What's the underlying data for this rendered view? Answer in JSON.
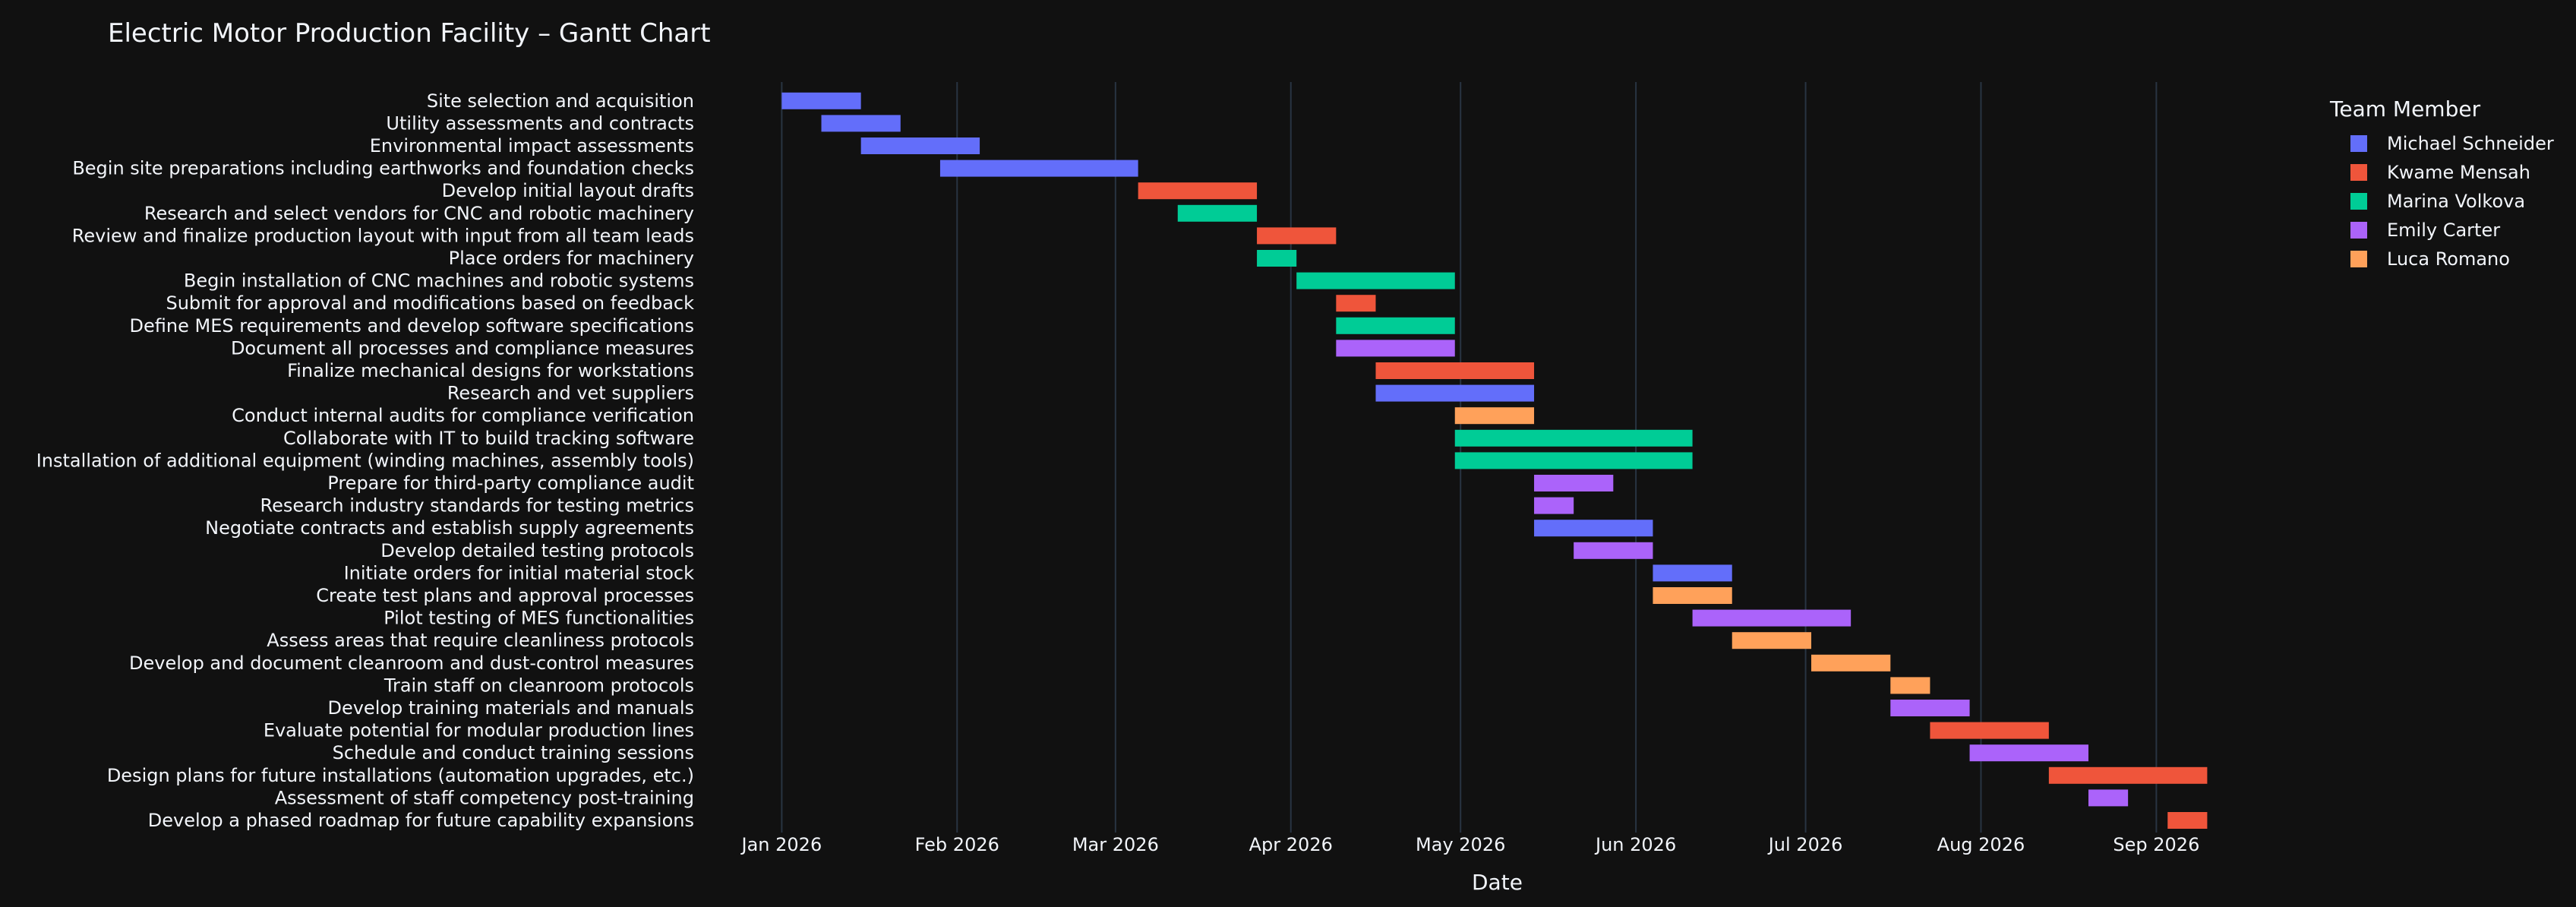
{
  "chart_data": {
    "type": "gantt",
    "title": "Electric Motor Production Facility – Gantt Chart",
    "xlabel": "Date",
    "ylabel": "",
    "x_ticks": [
      "Jan 2026",
      "Feb 2026",
      "Mar 2026",
      "Apr 2026",
      "May 2026",
      "Jun 2026",
      "Jul 2026",
      "Aug 2026",
      "Sep 2026"
    ],
    "x_range": [
      "2025-12-20",
      "2026-09-18"
    ],
    "grid": true,
    "legend_title": "Team Member",
    "legend_position": "top-right",
    "members": [
      {
        "name": "Michael Schneider",
        "color": "#636efa"
      },
      {
        "name": "Kwame Mensah",
        "color": "#ef553b"
      },
      {
        "name": "Marina Volkova",
        "color": "#00cc96"
      },
      {
        "name": "Emily Carter",
        "color": "#ab63fa"
      },
      {
        "name": "Luca Romano",
        "color": "#ffa15a"
      }
    ],
    "tasks": [
      {
        "task": "Site selection and acquisition",
        "start": "2026-01-01",
        "end": "2026-01-15",
        "member": "Michael Schneider"
      },
      {
        "task": "Utility assessments and contracts",
        "start": "2026-01-08",
        "end": "2026-01-22",
        "member": "Michael Schneider"
      },
      {
        "task": "Environmental impact assessments",
        "start": "2026-01-15",
        "end": "2026-02-05",
        "member": "Michael Schneider"
      },
      {
        "task": "Begin site preparations including earthworks and foundation checks",
        "start": "2026-01-29",
        "end": "2026-03-05",
        "member": "Michael Schneider"
      },
      {
        "task": "Develop initial layout drafts",
        "start": "2026-03-05",
        "end": "2026-03-26",
        "member": "Kwame Mensah"
      },
      {
        "task": "Research and select vendors for CNC and robotic machinery",
        "start": "2026-03-12",
        "end": "2026-03-26",
        "member": "Marina Volkova"
      },
      {
        "task": "Review and finalize production layout with input from all team leads",
        "start": "2026-03-26",
        "end": "2026-04-09",
        "member": "Kwame Mensah"
      },
      {
        "task": "Place orders for machinery",
        "start": "2026-03-26",
        "end": "2026-04-02",
        "member": "Marina Volkova"
      },
      {
        "task": "Begin installation of CNC machines and robotic systems",
        "start": "2026-04-02",
        "end": "2026-04-30",
        "member": "Marina Volkova"
      },
      {
        "task": "Submit for approval and modifications based on feedback",
        "start": "2026-04-09",
        "end": "2026-04-16",
        "member": "Kwame Mensah"
      },
      {
        "task": "Define MES requirements and develop software specifications",
        "start": "2026-04-09",
        "end": "2026-04-30",
        "member": "Marina Volkova"
      },
      {
        "task": "Document all processes and compliance measures",
        "start": "2026-04-09",
        "end": "2026-04-30",
        "member": "Emily Carter"
      },
      {
        "task": "Finalize mechanical designs for workstations",
        "start": "2026-04-16",
        "end": "2026-05-14",
        "member": "Kwame Mensah"
      },
      {
        "task": "Research and vet suppliers",
        "start": "2026-04-16",
        "end": "2026-05-14",
        "member": "Michael Schneider"
      },
      {
        "task": "Conduct internal audits for compliance verification",
        "start": "2026-04-30",
        "end": "2026-05-14",
        "member": "Luca Romano"
      },
      {
        "task": "Collaborate with IT to build tracking software",
        "start": "2026-04-30",
        "end": "2026-06-11",
        "member": "Marina Volkova"
      },
      {
        "task": "Installation of additional equipment (winding machines, assembly tools)",
        "start": "2026-04-30",
        "end": "2026-06-11",
        "member": "Marina Volkova"
      },
      {
        "task": "Prepare for third-party compliance audit",
        "start": "2026-05-14",
        "end": "2026-05-28",
        "member": "Emily Carter"
      },
      {
        "task": "Research industry standards for testing metrics",
        "start": "2026-05-14",
        "end": "2026-05-21",
        "member": "Emily Carter"
      },
      {
        "task": "Negotiate contracts and establish supply agreements",
        "start": "2026-05-14",
        "end": "2026-06-04",
        "member": "Michael Schneider"
      },
      {
        "task": "Develop detailed testing protocols",
        "start": "2026-05-21",
        "end": "2026-06-04",
        "member": "Emily Carter"
      },
      {
        "task": "Initiate orders for initial material stock",
        "start": "2026-06-04",
        "end": "2026-06-18",
        "member": "Michael Schneider"
      },
      {
        "task": "Create test plans and approval processes",
        "start": "2026-06-04",
        "end": "2026-06-18",
        "member": "Luca Romano"
      },
      {
        "task": "Pilot testing of MES functionalities",
        "start": "2026-06-11",
        "end": "2026-07-09",
        "member": "Emily Carter"
      },
      {
        "task": "Assess areas that require cleanliness protocols",
        "start": "2026-06-18",
        "end": "2026-07-02",
        "member": "Luca Romano"
      },
      {
        "task": "Develop and document cleanroom and dust-control measures",
        "start": "2026-07-02",
        "end": "2026-07-16",
        "member": "Luca Romano"
      },
      {
        "task": "Train staff on cleanroom protocols",
        "start": "2026-07-16",
        "end": "2026-07-23",
        "member": "Luca Romano"
      },
      {
        "task": "Develop training materials and manuals",
        "start": "2026-07-16",
        "end": "2026-07-30",
        "member": "Emily Carter"
      },
      {
        "task": "Evaluate potential for modular production lines",
        "start": "2026-07-23",
        "end": "2026-08-13",
        "member": "Kwame Mensah"
      },
      {
        "task": "Schedule and conduct training sessions",
        "start": "2026-07-30",
        "end": "2026-08-20",
        "member": "Emily Carter"
      },
      {
        "task": "Design plans for future installations (automation upgrades, etc.)",
        "start": "2026-08-13",
        "end": "2026-09-10",
        "member": "Kwame Mensah"
      },
      {
        "task": "Assessment of staff competency post-training",
        "start": "2026-08-20",
        "end": "2026-08-27",
        "member": "Emily Carter"
      },
      {
        "task": "Develop a phased roadmap for future capability expansions",
        "start": "2026-09-03",
        "end": "2026-09-10",
        "member": "Kwame Mensah"
      }
    ]
  }
}
